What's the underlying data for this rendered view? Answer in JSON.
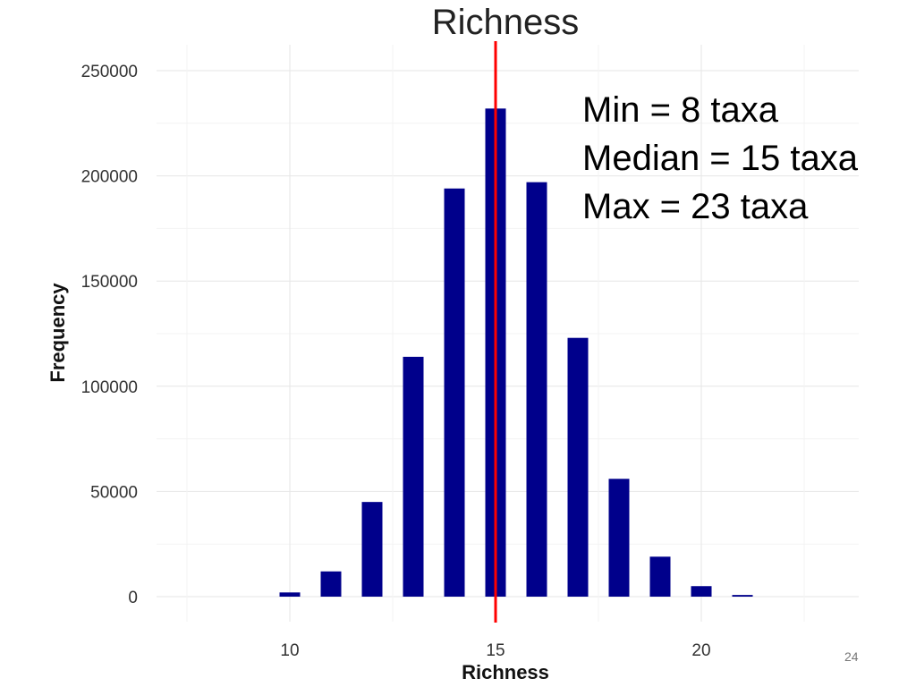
{
  "page_number": "24",
  "stats": [
    "Min = 8 taxa",
    "Median = 15 taxa",
    "Max = 23 taxa"
  ],
  "chart_data": {
    "type": "bar",
    "title": "Richness",
    "xlabel": "Richness",
    "ylabel": "Frequency",
    "x": [
      10,
      11,
      12,
      13,
      14,
      15,
      16,
      17,
      18,
      19,
      20,
      21
    ],
    "values": [
      2000,
      12000,
      45000,
      114000,
      194000,
      232000,
      197000,
      123000,
      56000,
      19000,
      5000,
      800
    ],
    "xlim": [
      7,
      23
    ],
    "ylim": [
      0,
      250000
    ],
    "xticks": [
      10,
      15,
      20
    ],
    "yticks": [
      0,
      50000,
      100000,
      150000,
      200000,
      250000
    ],
    "median_line": 15,
    "bar_color": "#00008B",
    "median_line_color": "#FF0000",
    "grid": true
  }
}
